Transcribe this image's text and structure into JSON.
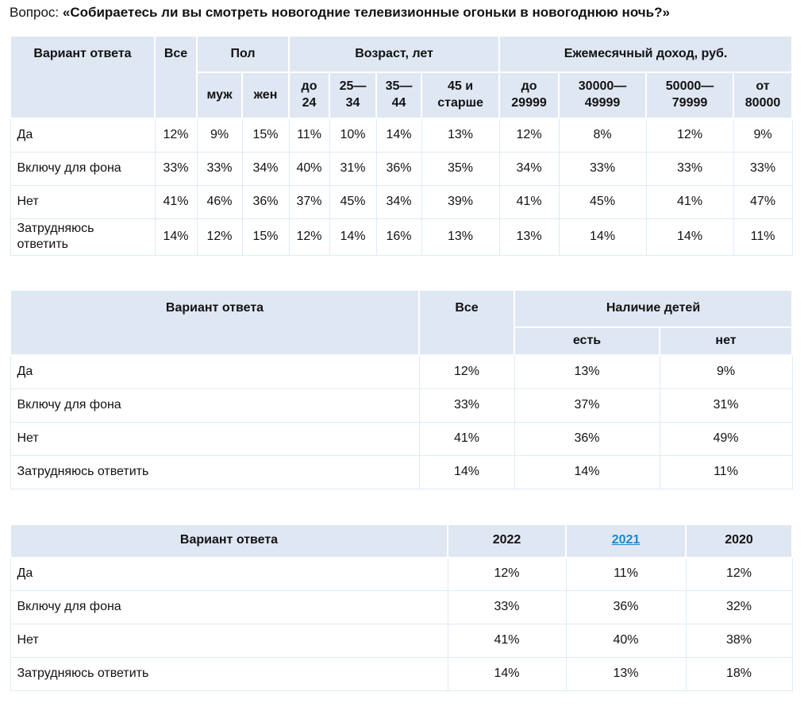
{
  "colors": {
    "header_bg": "#dfe7f3",
    "row_border": "#dfe9f6",
    "link": "#1d87c9",
    "text": "#121212",
    "page_bg": "#ffffff"
  },
  "title": {
    "prefix": "Вопрос: ",
    "question": "«Собираетесь ли вы смотреть новогодние телевизионные огоньки в новогоднюю ночь?»"
  },
  "tables": [
    {
      "name": "demographics",
      "header": {
        "variant": "Вариант ответа",
        "all": "Все",
        "gender": "Пол",
        "age": "Возраст, лет",
        "income": "Ежемесячный доход, руб."
      },
      "subheaders": [
        "муж",
        "жен",
        "до\n24",
        "25—\n34",
        "35—\n44",
        "45 и\nстарше",
        "до\n29999",
        "30000—\n49999",
        "50000—\n79999",
        "от\n80000"
      ],
      "rows": [
        {
          "label": "Да",
          "values": [
            "12%",
            "9%",
            "15%",
            "11%",
            "10%",
            "14%",
            "13%",
            "12%",
            "8%",
            "12%",
            "9%"
          ]
        },
        {
          "label": "Включу для фона",
          "values": [
            "33%",
            "33%",
            "34%",
            "40%",
            "31%",
            "36%",
            "35%",
            "34%",
            "33%",
            "33%",
            "33%"
          ]
        },
        {
          "label": "Нет",
          "values": [
            "41%",
            "46%",
            "36%",
            "37%",
            "45%",
            "34%",
            "39%",
            "41%",
            "45%",
            "41%",
            "47%"
          ]
        },
        {
          "label": "Затрудняюсь\nответить",
          "values": [
            "14%",
            "12%",
            "15%",
            "12%",
            "14%",
            "16%",
            "13%",
            "13%",
            "14%",
            "14%",
            "11%"
          ]
        }
      ]
    },
    {
      "name": "children",
      "header": {
        "variant": "Вариант ответа",
        "all": "Все",
        "children": "Наличие детей"
      },
      "subheaders": [
        "есть",
        "нет"
      ],
      "rows": [
        {
          "label": "Да",
          "values": [
            "12%",
            "13%",
            "9%"
          ]
        },
        {
          "label": "Включу для фона",
          "values": [
            "33%",
            "37%",
            "31%"
          ]
        },
        {
          "label": "Нет",
          "values": [
            "41%",
            "36%",
            "49%"
          ]
        },
        {
          "label": "Затрудняюсь ответить",
          "values": [
            "14%",
            "14%",
            "11%"
          ]
        }
      ]
    },
    {
      "name": "years",
      "header": {
        "variant": "Вариант ответа",
        "years": [
          "2022",
          "2021",
          "2020"
        ]
      },
      "rows": [
        {
          "label": "Да",
          "values": [
            "12%",
            "11%",
            "12%"
          ]
        },
        {
          "label": "Включу для фона",
          "values": [
            "33%",
            "36%",
            "32%"
          ]
        },
        {
          "label": "Нет",
          "values": [
            "41%",
            "40%",
            "38%"
          ]
        },
        {
          "label": "Затрудняюсь ответить",
          "values": [
            "14%",
            "13%",
            "18%"
          ]
        }
      ]
    }
  ]
}
